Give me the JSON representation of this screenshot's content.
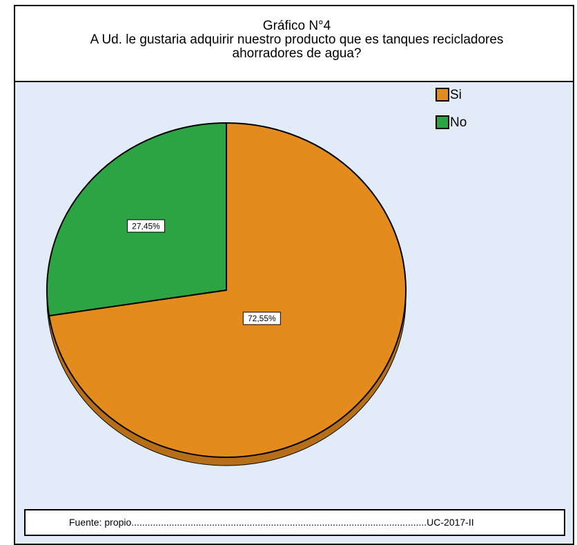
{
  "chart_data": {
    "type": "pie",
    "title": "Gráfico N°4",
    "subtitle": "A Ud. le gustaria adquirir nuestro producto que es tanques recicladores ahorradores de agua?",
    "categories": [
      "Si",
      "No"
    ],
    "values": [
      72.55,
      27.45
    ],
    "value_labels": [
      "72,55%",
      "27,45%"
    ],
    "colors": [
      "#e48b1e",
      "#2ca443"
    ],
    "legend": "top-right",
    "footer": "Fuente: propio..............................................................................................................UC-2017-II"
  }
}
